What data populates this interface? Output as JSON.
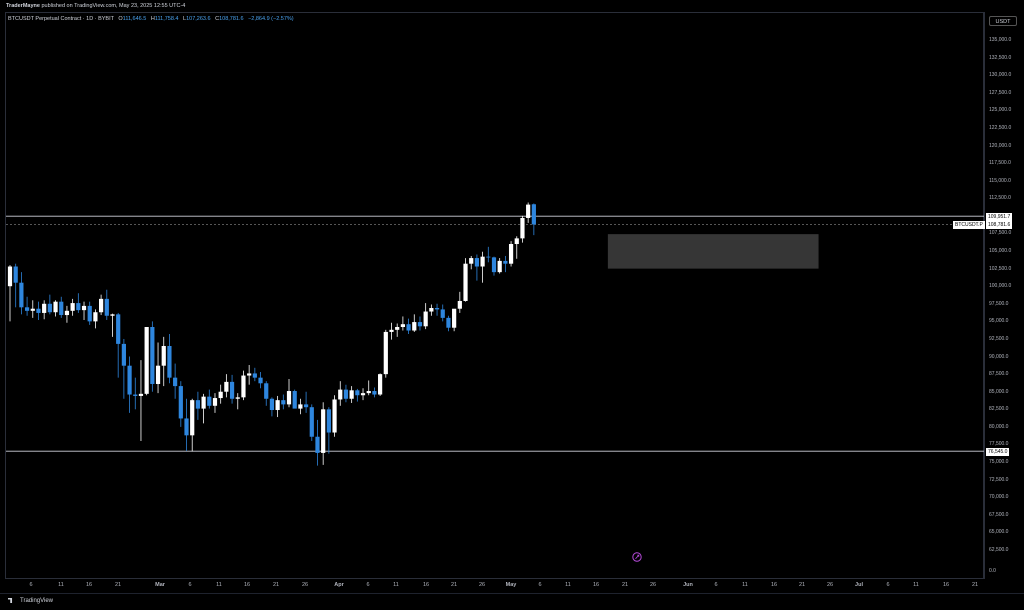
{
  "publish": {
    "author": "TraderMayne",
    "text": "published on TradingView.com, May 23, 2025 12:55 UTC-4"
  },
  "header": {
    "symbol": "BTCUSDT Perpetual Contract · 1D · BYBIT",
    "open_label": "O",
    "open": "111,646.5",
    "high_label": "H",
    "high": "111,758.4",
    "low_label": "L",
    "low": "107,263.6",
    "close_label": "C",
    "close": "108,781.6",
    "change": "−2,864.9 (−2.57%)"
  },
  "currency_button": "USDT",
  "y_axis_labels": [
    "135,000.0",
    "132,500.0",
    "130,000.0",
    "127,500.0",
    "125,000.0",
    "122,500.0",
    "120,000.0",
    "117,500.0",
    "115,000.0",
    "112,500.0",
    "107,500.0",
    "105,000.0",
    "102,500.0",
    "100,000.0",
    "97,500.0",
    "95,000.0",
    "92,500.0",
    "90,000.0",
    "87,500.0",
    "85,000.0",
    "82,500.0",
    "80,000.0",
    "77,500.0",
    "75,000.0",
    "72,500.0",
    "70,000.0",
    "67,500.0",
    "65,000.0",
    "62,500.0",
    "0.0"
  ],
  "price_tags": {
    "high_line": "109,951.7",
    "current": "108,781.6",
    "low_line": "76,545.0",
    "symbol": "BTCUSDT.P"
  },
  "x_axis_labels": [
    "6",
    "11",
    "16",
    "21",
    "Mar",
    "6",
    "11",
    "16",
    "21",
    "26",
    "Apr",
    "6",
    "11",
    "16",
    "21",
    "26",
    "May",
    "6",
    "11",
    "16",
    "21",
    "26",
    "Jun",
    "6",
    "11",
    "16",
    "21",
    "26",
    "Jul",
    "6",
    "11",
    "16",
    "21"
  ],
  "x_axis_bold": [
    "Mar",
    "Apr",
    "May",
    "Jun",
    "Jul"
  ],
  "brand": "TradingView",
  "colors": {
    "background": "#000000",
    "bull_candle": "#ffffff",
    "bear_candle": "#2e86de",
    "zone": "#363636",
    "level_line": "#d1d4dc",
    "marker": "#b44ad8"
  },
  "chart_data": {
    "type": "candlestick",
    "symbol": "BTCUSDT.P",
    "timeframe": "1D",
    "x_start": "2025-02-04",
    "ylim": [
      60000,
      137500
    ],
    "horizontal_levels": [
      109951.7,
      76545.0
    ],
    "current_price": 108781.6,
    "zone": {
      "from": "2025-05-20",
      "to": "2025-06-26",
      "low": 102500,
      "high": 107400
    },
    "candles": [
      [
        100000,
        103000,
        95000,
        102800
      ],
      [
        102800,
        103200,
        97000,
        100500
      ],
      [
        100500,
        102000,
        96000,
        97000
      ],
      [
        97000,
        98500,
        95800,
        96500
      ],
      [
        96500,
        98000,
        95500,
        96800
      ],
      [
        96800,
        97800,
        95200,
        96200
      ],
      [
        96200,
        98000,
        95300,
        97500
      ],
      [
        97500,
        98800,
        96000,
        96300
      ],
      [
        96300,
        98000,
        95700,
        97800
      ],
      [
        97800,
        98500,
        95500,
        95900
      ],
      [
        95900,
        97200,
        94800,
        96500
      ],
      [
        96500,
        98200,
        95800,
        97600
      ],
      [
        97600,
        99000,
        96200,
        96600
      ],
      [
        96600,
        97800,
        95200,
        97200
      ],
      [
        97200,
        97800,
        94500,
        95000
      ],
      [
        95000,
        96700,
        94000,
        96300
      ],
      [
        96300,
        98800,
        95900,
        98200
      ],
      [
        98200,
        99500,
        95200,
        95800
      ],
      [
        95800,
        96100,
        92800,
        96000
      ],
      [
        96000,
        96200,
        87000,
        91800
      ],
      [
        91800,
        92500,
        84000,
        88700
      ],
      [
        88700,
        90000,
        82000,
        84600
      ],
      [
        84600,
        87000,
        82500,
        84400
      ],
      [
        84400,
        89500,
        78000,
        84700
      ],
      [
        84700,
        94000,
        84500,
        94200
      ],
      [
        94200,
        95000,
        85000,
        86100
      ],
      [
        86100,
        92000,
        84800,
        88700
      ],
      [
        88700,
        92800,
        85800,
        91500
      ],
      [
        91500,
        93200,
        86200,
        87000
      ],
      [
        87000,
        89000,
        84000,
        85800
      ],
      [
        85800,
        86500,
        80000,
        81200
      ],
      [
        81200,
        84000,
        76600,
        78800
      ],
      [
        78800,
        84000,
        76500,
        83800
      ],
      [
        83800,
        85000,
        81000,
        82600
      ],
      [
        82600,
        84700,
        80500,
        84300
      ],
      [
        84300,
        85300,
        82600,
        83000
      ],
      [
        83000,
        84800,
        82000,
        84100
      ],
      [
        84100,
        86000,
        83300,
        85000
      ],
      [
        85000,
        87500,
        84200,
        86400
      ],
      [
        86400,
        87400,
        83300,
        84000
      ],
      [
        84000,
        84800,
        82500,
        84200
      ],
      [
        84200,
        88000,
        83800,
        87300
      ],
      [
        87300,
        88800,
        86000,
        87600
      ],
      [
        87600,
        88400,
        86500,
        87000
      ],
      [
        87000,
        87800,
        85500,
        86200
      ],
      [
        86200,
        86500,
        83000,
        84000
      ],
      [
        84000,
        84200,
        81500,
        82400
      ],
      [
        82400,
        84400,
        81400,
        83800
      ],
      [
        83800,
        84600,
        82500,
        83200
      ],
      [
        83200,
        86800,
        82800,
        85100
      ],
      [
        85100,
        85300,
        82800,
        82600
      ],
      [
        82600,
        84000,
        81800,
        83200
      ],
      [
        83200,
        85000,
        82000,
        82800
      ],
      [
        82800,
        83200,
        78000,
        78600
      ],
      [
        78600,
        81000,
        74500,
        76300
      ],
      [
        76300,
        83500,
        74600,
        82500
      ],
      [
        82500,
        82800,
        76200,
        79200
      ],
      [
        79200,
        84500,
        78600,
        83900
      ],
      [
        83900,
        86500,
        83000,
        85300
      ],
      [
        85300,
        86000,
        83500,
        84000
      ],
      [
        84000,
        85800,
        83400,
        85200
      ],
      [
        85200,
        85400,
        83600,
        84500
      ],
      [
        84500,
        85500,
        83800,
        84800
      ],
      [
        84800,
        86600,
        84500,
        85100
      ],
      [
        85100,
        85600,
        84200,
        84600
      ],
      [
        84600,
        87600,
        84400,
        87500
      ],
      [
        87500,
        93800,
        87000,
        93500
      ],
      [
        93500,
        94800,
        92400,
        93800
      ],
      [
        93800,
        94700,
        92800,
        94200
      ],
      [
        94200,
        95700,
        93700,
        94600
      ],
      [
        94600,
        95400,
        93200,
        93700
      ],
      [
        93700,
        96000,
        93500,
        94900
      ],
      [
        94900,
        95700,
        93700,
        94300
      ],
      [
        94300,
        97600,
        93900,
        96400
      ],
      [
        96400,
        97400,
        95800,
        96900
      ],
      [
        96900,
        97500,
        95800,
        96700
      ],
      [
        96700,
        97400,
        95000,
        95500
      ],
      [
        95500,
        95800,
        93600,
        94100
      ],
      [
        94100,
        96700,
        93600,
        96800
      ],
      [
        96800,
        99200,
        96200,
        97900
      ],
      [
        97900,
        104000,
        97800,
        103200
      ],
      [
        103200,
        104300,
        102400,
        104000
      ],
      [
        104000,
        104500,
        100800,
        102800
      ],
      [
        102800,
        104900,
        100500,
        104200
      ],
      [
        104200,
        105600,
        103400,
        104100
      ],
      [
        104100,
        104200,
        101500,
        102000
      ],
      [
        102000,
        104000,
        101800,
        103600
      ],
      [
        103600,
        104300,
        102000,
        103200
      ],
      [
        103200,
        106400,
        102800,
        106000
      ],
      [
        106000,
        107100,
        103900,
        106800
      ],
      [
        106800,
        110000,
        106200,
        109700
      ],
      [
        109700,
        111900,
        109000,
        111600
      ],
      [
        111650,
        111760,
        107260,
        108780
      ]
    ]
  }
}
